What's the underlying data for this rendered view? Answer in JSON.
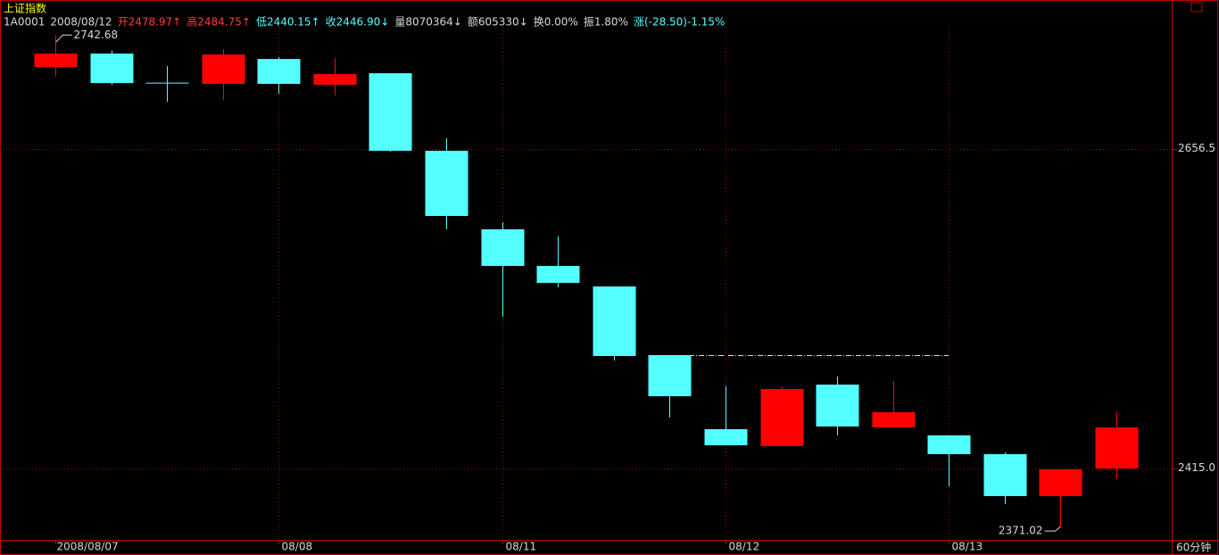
{
  "chart_data": {
    "type": "candlestick",
    "title": "上证指数",
    "header": [
      {
        "text": "1A0001",
        "color": "#d8d8d8"
      },
      {
        "text": "2008/08/12",
        "color": "#d8d8d8"
      },
      {
        "text": "开2478.97↑",
        "color": "#ff3c3c"
      },
      {
        "text": "高2484.75↑",
        "color": "#ff3c3c"
      },
      {
        "text": "低2440.15↑",
        "color": "#54ffff"
      },
      {
        "text": "收2446.90↓",
        "color": "#54ffff"
      },
      {
        "text": "量8070364↓",
        "color": "#d8d8d8"
      },
      {
        "text": "额605330↓",
        "color": "#d8d8d8"
      },
      {
        "text": "换0.00%",
        "color": "#d8d8d8"
      },
      {
        "text": "振1.80%",
        "color": "#d8d8d8"
      },
      {
        "text": "涨(-28.50)-1.15%",
        "color": "#54ffff"
      }
    ],
    "period": "60分钟",
    "categories": [
      "2008/08/07",
      null,
      null,
      null,
      "08/08",
      null,
      null,
      null,
      "08/11",
      null,
      null,
      null,
      "08/12",
      null,
      null,
      null,
      "08/13",
      null,
      null,
      null
    ],
    "open": [
      2718.6,
      2728.7,
      2706.4,
      2705.8,
      2724.6,
      2705.1,
      2713.8,
      2655.2,
      2595.8,
      2568.1,
      2552.6,
      2500.7,
      2444.7,
      2431.9,
      2478.4,
      2446.0,
      2440.0,
      2425.8,
      2394.1,
      2415.0
    ],
    "high": [
      2742.68,
      2730.7,
      2719.2,
      2732.1,
      2726.0,
      2725.3,
      2713.8,
      2664.6,
      2601.2,
      2590.4,
      2552.6,
      2500.7,
      2477.1,
      2476.4,
      2484.5,
      2481.1,
      2440.0,
      2427.1,
      2414.3,
      2458.2
    ],
    "low": [
      2711.2,
      2705.1,
      2692.3,
      2693.6,
      2698.3,
      2697.0,
      2654.5,
      2595.8,
      2529.7,
      2552.0,
      2496.6,
      2453.5,
      2432.5,
      2431.9,
      2440.0,
      2446.0,
      2401.5,
      2388.0,
      2371.02,
      2406.9
    ],
    "close": [
      2728.7,
      2706.4,
      2706.4,
      2728.0,
      2705.8,
      2713.2,
      2655.2,
      2605.9,
      2568.1,
      2555.3,
      2500.0,
      2469.6,
      2432.5,
      2475.0,
      2446.7,
      2457.5,
      2425.8,
      2394.1,
      2414.3,
      2446.0
    ],
    "up_color": "#ff0000",
    "down_color": "#54ffff",
    "ylim": [
      2361.0,
      2766.5
    ],
    "yticks": [
      2656.5,
      {
        "value": 2415,
        "label": "2415.0"
      }
    ],
    "grid": true
  }
}
